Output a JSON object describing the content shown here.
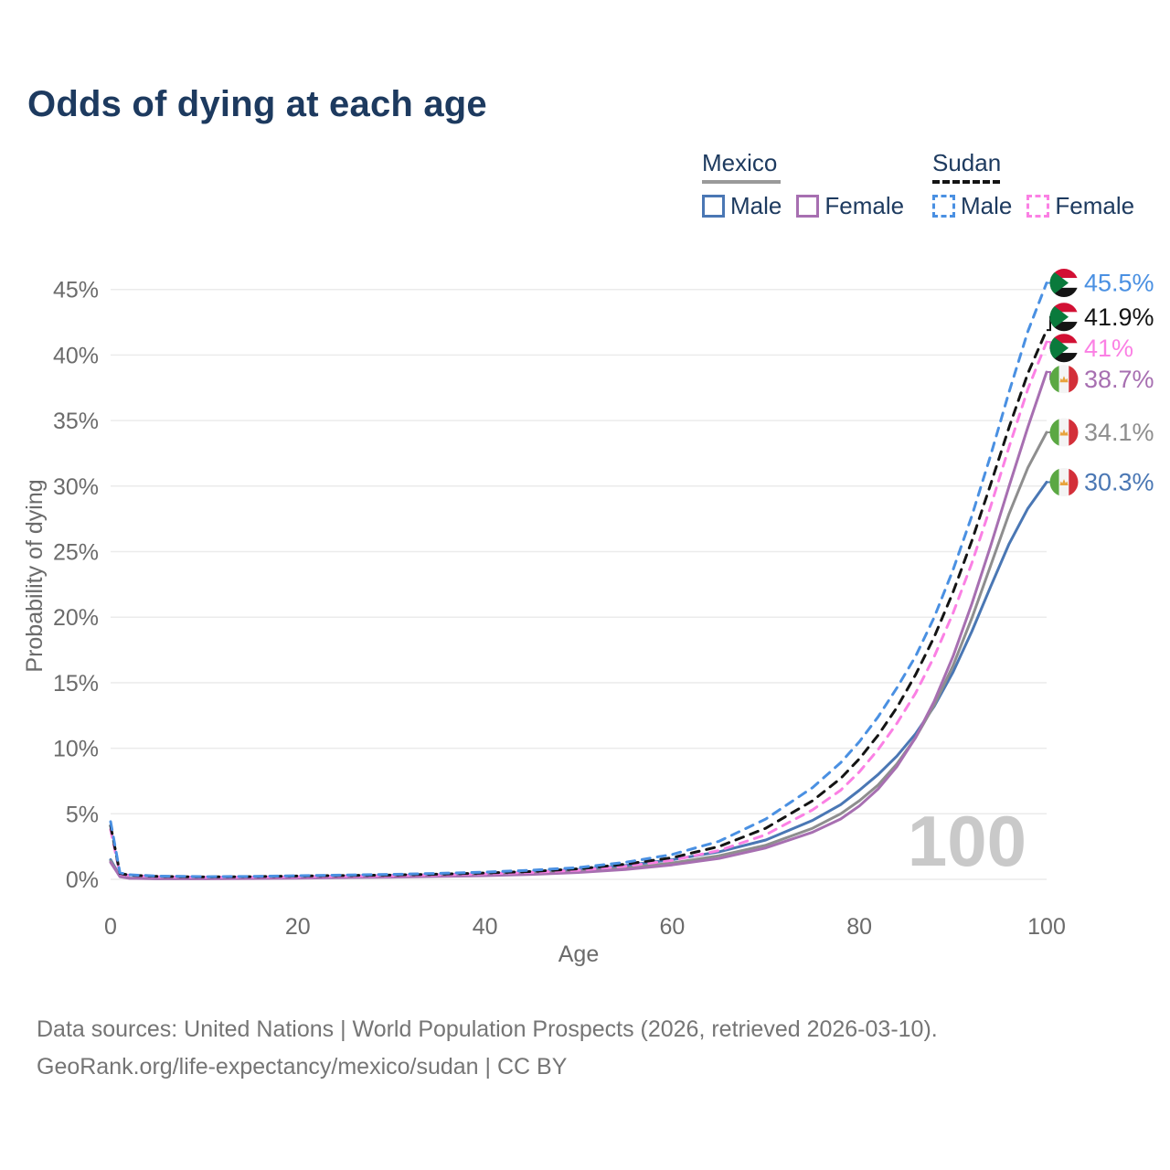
{
  "title": "Odds of dying at each age",
  "watermark_age": "100",
  "legend": {
    "groups": [
      {
        "label": "Mexico",
        "line_style": "solid",
        "underline_color": "#9a9a9a",
        "items": [
          {
            "label": "Male",
            "color": "#4a77b4",
            "dashed": false
          },
          {
            "label": "Female",
            "color": "#a76fb1",
            "dashed": false
          }
        ]
      },
      {
        "label": "Sudan",
        "line_style": "dashed",
        "underline_color": "#141414",
        "items": [
          {
            "label": "Male",
            "color": "#4a90e2",
            "dashed": true
          },
          {
            "label": "Female",
            "color": "#fb80e4",
            "dashed": true
          }
        ]
      }
    ]
  },
  "footer": {
    "line1": "Data sources: United Nations | World Population Prospects (2026, retrieved 2026-03-10).",
    "line2": "GeoRank.org/life-expectancy/mexico/sudan | CC BY"
  },
  "chart_data": {
    "type": "line",
    "title": "Odds of dying at each age",
    "xlabel": "Age",
    "ylabel": "Probability of dying",
    "xlim": [
      0,
      100
    ],
    "ylim": [
      0,
      45.5
    ],
    "grid": true,
    "legend_position": "top-right",
    "xticks": [
      0,
      20,
      40,
      60,
      80,
      100
    ],
    "yticks": [
      0,
      5,
      10,
      15,
      20,
      25,
      30,
      35,
      40,
      45
    ],
    "ytick_suffix": "%",
    "x": [
      0,
      1,
      2,
      5,
      10,
      15,
      20,
      25,
      30,
      35,
      40,
      45,
      50,
      55,
      60,
      65,
      70,
      75,
      78,
      80,
      82,
      84,
      86,
      88,
      90,
      92,
      94,
      96,
      98,
      100
    ],
    "series": [
      {
        "name": "Sudan Male",
        "country": "Sudan",
        "sex": "Male",
        "flag": "sudan",
        "color": "#4a90e2",
        "dashed": true,
        "end_label": "45.5%",
        "values": [
          4.4,
          0.5,
          0.35,
          0.25,
          0.2,
          0.22,
          0.28,
          0.33,
          0.38,
          0.45,
          0.55,
          0.7,
          0.9,
          1.3,
          1.9,
          2.9,
          4.6,
          7.0,
          8.9,
          10.5,
          12.4,
          14.6,
          17.0,
          20.0,
          23.6,
          27.7,
          32.3,
          37.2,
          41.8,
          45.5
        ]
      },
      {
        "name": "Sudan Both sexes",
        "country": "Sudan",
        "sex": "Both",
        "flag": "sudan",
        "color": "#141414",
        "dashed": true,
        "end_label": "41.9%",
        "values": [
          4.1,
          0.45,
          0.32,
          0.22,
          0.18,
          0.2,
          0.25,
          0.29,
          0.33,
          0.39,
          0.48,
          0.6,
          0.8,
          1.15,
          1.65,
          2.5,
          3.9,
          6.0,
          7.7,
          9.2,
          11.0,
          13.1,
          15.6,
          18.5,
          21.9,
          25.8,
          30.1,
          34.5,
          38.6,
          41.9
        ]
      },
      {
        "name": "Sudan Female",
        "country": "Sudan",
        "sex": "Female",
        "flag": "sudan",
        "color": "#fb80e4",
        "dashed": true,
        "end_label": "41%",
        "values": [
          3.8,
          0.4,
          0.3,
          0.2,
          0.16,
          0.17,
          0.2,
          0.24,
          0.28,
          0.34,
          0.42,
          0.53,
          0.7,
          1.0,
          1.45,
          2.2,
          3.4,
          5.3,
          6.8,
          8.2,
          9.9,
          11.9,
          14.2,
          17.0,
          20.3,
          24.1,
          28.4,
          33.0,
          37.4,
          41.0
        ]
      },
      {
        "name": "Mexico Female",
        "country": "Mexico",
        "sex": "Female",
        "flag": "mexico",
        "color": "#a76fb1",
        "dashed": false,
        "end_label": "38.7%",
        "values": [
          1.3,
          0.2,
          0.08,
          0.04,
          0.04,
          0.06,
          0.09,
          0.13,
          0.17,
          0.22,
          0.28,
          0.38,
          0.52,
          0.75,
          1.1,
          1.6,
          2.4,
          3.6,
          4.6,
          5.6,
          6.9,
          8.6,
          10.8,
          13.6,
          17.0,
          21.0,
          25.4,
          30.0,
          34.5,
          38.7
        ]
      },
      {
        "name": "Mexico Both sexes",
        "country": "Mexico",
        "sex": "Both",
        "flag": "mexico",
        "color": "#8e8e8e",
        "dashed": false,
        "end_label": "34.1%",
        "values": [
          1.4,
          0.22,
          0.09,
          0.05,
          0.05,
          0.08,
          0.13,
          0.18,
          0.22,
          0.27,
          0.33,
          0.44,
          0.6,
          0.85,
          1.25,
          1.8,
          2.6,
          3.9,
          5.0,
          6.0,
          7.2,
          8.8,
          10.8,
          13.3,
          16.3,
          19.9,
          23.9,
          27.9,
          31.4,
          34.1
        ]
      },
      {
        "name": "Mexico Male",
        "country": "Mexico",
        "sex": "Male",
        "flag": "mexico",
        "color": "#4a77b4",
        "dashed": false,
        "end_label": "30.3%",
        "values": [
          1.5,
          0.25,
          0.1,
          0.06,
          0.06,
          0.1,
          0.18,
          0.25,
          0.3,
          0.35,
          0.42,
          0.55,
          0.75,
          1.05,
          1.5,
          2.1,
          3.0,
          4.5,
          5.7,
          6.8,
          8.0,
          9.4,
          11.1,
          13.2,
          15.8,
          18.9,
          22.3,
          25.6,
          28.3,
          30.3
        ]
      }
    ],
    "flag_colors": {
      "sudan": {
        "red": "#d21034",
        "white": "#ffffff",
        "black": "#141414",
        "green": "#0a7a3c"
      },
      "mexico": {
        "green": "#5ba843",
        "white": "#f4f4f4",
        "red": "#d32f39",
        "emblem": "#e8a33d"
      }
    },
    "axis_text_color": "#6b6b6b",
    "grid_color": "#ebebeb",
    "watermark_color": "#c9c9c9"
  }
}
